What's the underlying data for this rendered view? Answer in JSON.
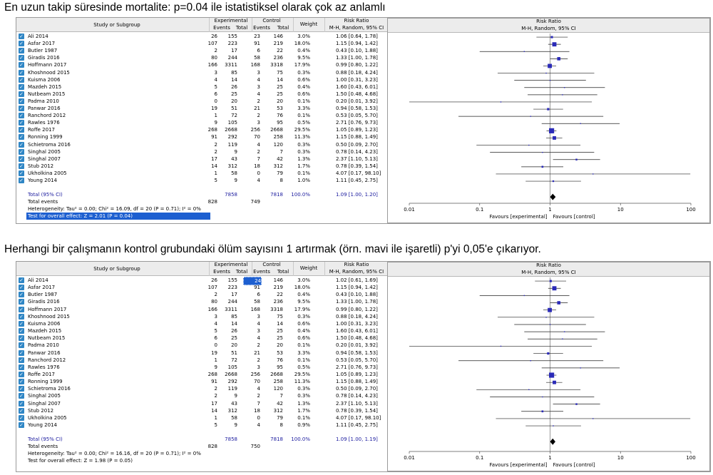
{
  "panels": [
    {
      "heading": "En uzun takip süresinde mortalite: p=0.04 ile istatistiksel olarak çok az  anlamlı",
      "header": {
        "study": "Study or Subgroup",
        "experimental": "Experimental",
        "control": "Control",
        "events": "Events",
        "total": "Total",
        "weight": "Weight",
        "rr": "Risk Ratio",
        "rr_sub": "M-H, Random, 95% CI",
        "plot_title": "Risk Ratio",
        "plot_sub": "M-H, Random, 95% CI"
      },
      "rows": [
        {
          "name": "Ali 2014",
          "ee": "26",
          "et": "155",
          "ce": "23",
          "ct": "146",
          "w": "3.0%",
          "ci": "1.06 [0.64, 1.78]",
          "highlight": false
        },
        {
          "name": "Asfar 2017",
          "ee": "107",
          "et": "223",
          "ce": "91",
          "ct": "219",
          "w": "18.0%",
          "ci": "1.15 [0.94, 1.42]",
          "highlight": false
        },
        {
          "name": "Butler 1987",
          "ee": "2",
          "et": "17",
          "ce": "6",
          "ct": "22",
          "w": "0.4%",
          "ci": "0.43 [0.10, 1.88]",
          "highlight": false
        },
        {
          "name": "Giradis 2016",
          "ee": "80",
          "et": "244",
          "ce": "58",
          "ct": "236",
          "w": "9.5%",
          "ci": "1.33 [1.00, 1.78]",
          "highlight": false
        },
        {
          "name": "Hoffmann 2017",
          "ee": "166",
          "et": "3311",
          "ce": "168",
          "ct": "3318",
          "w": "17.9%",
          "ci": "0.99 [0.80, 1.22]",
          "highlight": false
        },
        {
          "name": "Khoshnood 2015",
          "ee": "3",
          "et": "85",
          "ce": "3",
          "ct": "75",
          "w": "0.3%",
          "ci": "0.88 [0.18, 4.24]",
          "highlight": false
        },
        {
          "name": "Kuisma 2006",
          "ee": "4",
          "et": "14",
          "ce": "4",
          "ct": "14",
          "w": "0.6%",
          "ci": "1.00 [0.31, 3.23]",
          "highlight": false
        },
        {
          "name": "Mazdeh 2015",
          "ee": "5",
          "et": "26",
          "ce": "3",
          "ct": "25",
          "w": "0.4%",
          "ci": "1.60 [0.43, 6.01]",
          "highlight": false
        },
        {
          "name": "Nutbeam 2015",
          "ee": "6",
          "et": "25",
          "ce": "4",
          "ct": "25",
          "w": "0.6%",
          "ci": "1.50 [0.48, 4.68]",
          "highlight": false
        },
        {
          "name": "Padma 2010",
          "ee": "0",
          "et": "20",
          "ce": "2",
          "ct": "20",
          "w": "0.1%",
          "ci": "0.20 [0.01, 3.92]",
          "highlight": false
        },
        {
          "name": "Panwar 2016",
          "ee": "19",
          "et": "51",
          "ce": "21",
          "ct": "53",
          "w": "3.3%",
          "ci": "0.94 [0.58, 1.53]",
          "highlight": false
        },
        {
          "name": "Ranchord 2012",
          "ee": "1",
          "et": "72",
          "ce": "2",
          "ct": "76",
          "w": "0.1%",
          "ci": "0.53 [0.05, 5.70]",
          "highlight": false
        },
        {
          "name": "Rawles 1976",
          "ee": "9",
          "et": "105",
          "ce": "3",
          "ct": "95",
          "w": "0.5%",
          "ci": "2.71 [0.76, 9.73]",
          "highlight": false
        },
        {
          "name": "Roffe 2017",
          "ee": "268",
          "et": "2668",
          "ce": "256",
          "ct": "2668",
          "w": "29.5%",
          "ci": "1.05 [0.89, 1.23]",
          "highlight": false
        },
        {
          "name": "Ronning 1999",
          "ee": "91",
          "et": "292",
          "ce": "70",
          "ct": "258",
          "w": "11.3%",
          "ci": "1.15 [0.88, 1.49]",
          "highlight": false
        },
        {
          "name": "Schietroma 2016",
          "ee": "2",
          "et": "119",
          "ce": "4",
          "ct": "120",
          "w": "0.3%",
          "ci": "0.50 [0.09, 2.70]",
          "highlight": false
        },
        {
          "name": "Singhal 2005",
          "ee": "2",
          "et": "9",
          "ce": "2",
          "ct": "7",
          "w": "0.3%",
          "ci": "0.78 [0.14, 4.23]",
          "highlight": false
        },
        {
          "name": "Singhal 2007",
          "ee": "17",
          "et": "43",
          "ce": "7",
          "ct": "42",
          "w": "1.3%",
          "ci": "2.37 [1.10, 5.13]",
          "highlight": false
        },
        {
          "name": "Stub 2012",
          "ee": "14",
          "et": "312",
          "ce": "18",
          "ct": "312",
          "w": "1.7%",
          "ci": "0.78 [0.39, 1.54]",
          "highlight": false
        },
        {
          "name": "Ukholkina 2005",
          "ee": "1",
          "et": "58",
          "ce": "0",
          "ct": "79",
          "w": "0.1%",
          "ci": "4.07 [0.17, 98.10]",
          "highlight": false
        },
        {
          "name": "Young 2014",
          "ee": "5",
          "et": "9",
          "ce": "4",
          "ct": "8",
          "w": "1.0%",
          "ci": "1.11 [0.45, 2.75]",
          "highlight": false
        }
      ],
      "total_label": "Total (95% CI)",
      "total_exp": "7858",
      "total_ctl": "7818",
      "total_weight": "100.0%",
      "total_ci": "1.09 [1.00, 1.20]",
      "events_label": "Total events",
      "events_exp": "828",
      "events_ctl": "749",
      "heterogeneity": "Heterogeneity: Tau² = 0.00; Chi² = 16.09, df = 20 (P = 0.71); I² = 0%",
      "overall": "Test for overall effect: Z = 2.01 (P = 0.04)",
      "overall_selected": true,
      "axis_ticks": [
        "0.01",
        "0.1",
        "1",
        "10",
        "100"
      ],
      "favours_left": "Favours [experimental]",
      "favours_right": "Favours [control]"
    },
    {
      "heading": "Herhangi bir çalışmanın kontrol grubundaki ölüm sayısını 1 artırmak (örn. mavi ile işaretli) p'yi 0,05'e çıkarıyor.",
      "header": {
        "study": "Study or Subgroup",
        "experimental": "Experimental",
        "control": "Control",
        "events": "Events",
        "total": "Total",
        "weight": "Weight",
        "rr": "Risk Ratio",
        "rr_sub": "M-H, Random, 95% CI",
        "plot_title": "Risk Ratio",
        "plot_sub": "M-H, Random, 95% CI"
      },
      "rows": [
        {
          "name": "Ali 2014",
          "ee": "26",
          "et": "155",
          "ce": "24",
          "ct": "146",
          "w": "3.0%",
          "ci": "1.02 [0.61, 1.69]",
          "highlight": true
        },
        {
          "name": "Asfar 2017",
          "ee": "107",
          "et": "223",
          "ce": "91",
          "ct": "219",
          "w": "18.0%",
          "ci": "1.15 [0.94, 1.42]",
          "highlight": false
        },
        {
          "name": "Butler 1987",
          "ee": "2",
          "et": "17",
          "ce": "6",
          "ct": "22",
          "w": "0.4%",
          "ci": "0.43 [0.10, 1.88]",
          "highlight": false
        },
        {
          "name": "Giradis 2016",
          "ee": "80",
          "et": "244",
          "ce": "58",
          "ct": "236",
          "w": "9.5%",
          "ci": "1.33 [1.00, 1.78]",
          "highlight": false
        },
        {
          "name": "Hoffmann 2017",
          "ee": "166",
          "et": "3311",
          "ce": "168",
          "ct": "3318",
          "w": "17.9%",
          "ci": "0.99 [0.80, 1.22]",
          "highlight": false
        },
        {
          "name": "Khoshnood 2015",
          "ee": "3",
          "et": "85",
          "ce": "3",
          "ct": "75",
          "w": "0.3%",
          "ci": "0.88 [0.18, 4.24]",
          "highlight": false
        },
        {
          "name": "Kuisma 2006",
          "ee": "4",
          "et": "14",
          "ce": "4",
          "ct": "14",
          "w": "0.6%",
          "ci": "1.00 [0.31, 3.23]",
          "highlight": false
        },
        {
          "name": "Mazdeh 2015",
          "ee": "5",
          "et": "26",
          "ce": "3",
          "ct": "25",
          "w": "0.4%",
          "ci": "1.60 [0.43, 6.01]",
          "highlight": false
        },
        {
          "name": "Nutbeam 2015",
          "ee": "6",
          "et": "25",
          "ce": "4",
          "ct": "25",
          "w": "0.6%",
          "ci": "1.50 [0.48, 4.68]",
          "highlight": false
        },
        {
          "name": "Padma 2010",
          "ee": "0",
          "et": "20",
          "ce": "2",
          "ct": "20",
          "w": "0.1%",
          "ci": "0.20 [0.01, 3.92]",
          "highlight": false
        },
        {
          "name": "Panwar 2016",
          "ee": "19",
          "et": "51",
          "ce": "21",
          "ct": "53",
          "w": "3.3%",
          "ci": "0.94 [0.58, 1.53]",
          "highlight": false
        },
        {
          "name": "Ranchord 2012",
          "ee": "1",
          "et": "72",
          "ce": "2",
          "ct": "76",
          "w": "0.1%",
          "ci": "0.53 [0.05, 5.70]",
          "highlight": false
        },
        {
          "name": "Rawles 1976",
          "ee": "9",
          "et": "105",
          "ce": "3",
          "ct": "95",
          "w": "0.5%",
          "ci": "2.71 [0.76, 9.73]",
          "highlight": false
        },
        {
          "name": "Roffe 2017",
          "ee": "268",
          "et": "2668",
          "ce": "256",
          "ct": "2668",
          "w": "29.5%",
          "ci": "1.05 [0.89, 1.23]",
          "highlight": false
        },
        {
          "name": "Ronning 1999",
          "ee": "91",
          "et": "292",
          "ce": "70",
          "ct": "258",
          "w": "11.3%",
          "ci": "1.15 [0.88, 1.49]",
          "highlight": false
        },
        {
          "name": "Schietroma 2016",
          "ee": "2",
          "et": "119",
          "ce": "4",
          "ct": "120",
          "w": "0.3%",
          "ci": "0.50 [0.09, 2.70]",
          "highlight": false
        },
        {
          "name": "Singhal 2005",
          "ee": "2",
          "et": "9",
          "ce": "2",
          "ct": "7",
          "w": "0.3%",
          "ci": "0.78 [0.14, 4.23]",
          "highlight": false
        },
        {
          "name": "Singhal 2007",
          "ee": "17",
          "et": "43",
          "ce": "7",
          "ct": "42",
          "w": "1.3%",
          "ci": "2.37 [1.10, 5.13]",
          "highlight": false
        },
        {
          "name": "Stub 2012",
          "ee": "14",
          "et": "312",
          "ce": "18",
          "ct": "312",
          "w": "1.7%",
          "ci": "0.78 [0.39, 1.54]",
          "highlight": false
        },
        {
          "name": "Ukholkina 2005",
          "ee": "1",
          "et": "58",
          "ce": "0",
          "ct": "79",
          "w": "0.1%",
          "ci": "4.07 [0.17, 98.10]",
          "highlight": false
        },
        {
          "name": "Young 2014",
          "ee": "5",
          "et": "9",
          "ce": "4",
          "ct": "8",
          "w": "0.9%",
          "ci": "1.11 [0.45, 2.75]",
          "highlight": false
        }
      ],
      "total_label": "Total (95% CI)",
      "total_exp": "7858",
      "total_ctl": "7818",
      "total_weight": "100.0%",
      "total_ci": "1.09 [1.00, 1.19]",
      "events_label": "Total events",
      "events_exp": "828",
      "events_ctl": "750",
      "heterogeneity": "Heterogeneity: Tau² = 0.00; Chi² = 16.16, df = 20 (P = 0.71); I² = 0%",
      "overall": "Test for overall effect: Z = 1.98 (P = 0.05)",
      "overall_selected": false,
      "axis_ticks": [
        "0.01",
        "0.1",
        "1",
        "10",
        "100"
      ],
      "favours_left": "Favours [experimental]",
      "favours_right": "Favours [control]"
    }
  ],
  "colors": {
    "checkbox": "#2f86c5",
    "square": "#2b2bb8",
    "selection": "#1d5fd0",
    "total_text": "#1a1a9e"
  },
  "chart_data": [
    {
      "type": "forest",
      "title": "Risk Ratio",
      "subtitle": "M-H, Random, 95% CI",
      "x_scale": "log",
      "xlim": [
        0.01,
        100
      ],
      "xticks": [
        0.01,
        0.1,
        1,
        10,
        100
      ],
      "xlabel_left": "Favours [experimental]",
      "xlabel_right": "Favours [control]",
      "studies": [
        "Ali 2014",
        "Asfar 2017",
        "Butler 1987",
        "Giradis 2016",
        "Hoffmann 2017",
        "Khoshnood 2015",
        "Kuisma 2006",
        "Mazdeh 2015",
        "Nutbeam 2015",
        "Padma 2010",
        "Panwar 2016",
        "Ranchord 2012",
        "Rawles 1976",
        "Roffe 2017",
        "Ronning 1999",
        "Schietroma 2016",
        "Singhal 2005",
        "Singhal 2007",
        "Stub 2012",
        "Ukholkina 2005",
        "Young 2014"
      ],
      "rr": [
        1.06,
        1.15,
        0.43,
        1.33,
        0.99,
        0.88,
        1.0,
        1.6,
        1.5,
        0.2,
        0.94,
        0.53,
        2.71,
        1.05,
        1.15,
        0.5,
        0.78,
        2.37,
        0.78,
        4.07,
        1.11
      ],
      "lower": [
        0.64,
        0.94,
        0.1,
        1.0,
        0.8,
        0.18,
        0.31,
        0.43,
        0.48,
        0.01,
        0.58,
        0.05,
        0.76,
        0.89,
        0.88,
        0.09,
        0.14,
        1.1,
        0.39,
        0.17,
        0.45
      ],
      "upper": [
        1.78,
        1.42,
        1.88,
        1.78,
        1.22,
        4.24,
        3.23,
        6.01,
        4.68,
        3.92,
        1.53,
        5.7,
        9.73,
        1.23,
        1.49,
        2.7,
        4.23,
        5.13,
        1.54,
        98.1,
        2.75
      ],
      "weight": [
        3.0,
        18.0,
        0.4,
        9.5,
        17.9,
        0.3,
        0.6,
        0.4,
        0.6,
        0.1,
        3.3,
        0.1,
        0.5,
        29.5,
        11.3,
        0.3,
        0.3,
        1.3,
        1.7,
        0.1,
        1.0
      ],
      "total": {
        "rr": 1.09,
        "lower": 1.0,
        "upper": 1.2
      }
    },
    {
      "type": "forest",
      "title": "Risk Ratio",
      "subtitle": "M-H, Random, 95% CI",
      "x_scale": "log",
      "xlim": [
        0.01,
        100
      ],
      "xticks": [
        0.01,
        0.1,
        1,
        10,
        100
      ],
      "xlabel_left": "Favours [experimental]",
      "xlabel_right": "Favours [control]",
      "studies": [
        "Ali 2014",
        "Asfar 2017",
        "Butler 1987",
        "Giradis 2016",
        "Hoffmann 2017",
        "Khoshnood 2015",
        "Kuisma 2006",
        "Mazdeh 2015",
        "Nutbeam 2015",
        "Padma 2010",
        "Panwar 2016",
        "Ranchord 2012",
        "Rawles 1976",
        "Roffe 2017",
        "Ronning 1999",
        "Schietroma 2016",
        "Singhal 2005",
        "Singhal 2007",
        "Stub 2012",
        "Ukholkina 2005",
        "Young 2014"
      ],
      "rr": [
        1.02,
        1.15,
        0.43,
        1.33,
        0.99,
        0.88,
        1.0,
        1.6,
        1.5,
        0.2,
        0.94,
        0.53,
        2.71,
        1.05,
        1.15,
        0.5,
        0.78,
        2.37,
        0.78,
        4.07,
        1.11
      ],
      "lower": [
        0.61,
        0.94,
        0.1,
        1.0,
        0.8,
        0.18,
        0.31,
        0.43,
        0.48,
        0.01,
        0.58,
        0.05,
        0.76,
        0.89,
        0.88,
        0.09,
        0.14,
        1.1,
        0.39,
        0.17,
        0.45
      ],
      "upper": [
        1.69,
        1.42,
        1.88,
        1.78,
        1.22,
        4.24,
        3.23,
        6.01,
        4.68,
        3.92,
        1.53,
        5.7,
        9.73,
        1.23,
        1.49,
        2.7,
        4.23,
        5.13,
        1.54,
        98.1,
        2.75
      ],
      "weight": [
        3.0,
        18.0,
        0.4,
        9.5,
        17.9,
        0.3,
        0.6,
        0.4,
        0.6,
        0.1,
        3.3,
        0.1,
        0.5,
        29.5,
        11.3,
        0.3,
        0.3,
        1.3,
        1.7,
        0.1,
        0.9
      ],
      "total": {
        "rr": 1.09,
        "lower": 1.0,
        "upper": 1.19
      }
    }
  ]
}
